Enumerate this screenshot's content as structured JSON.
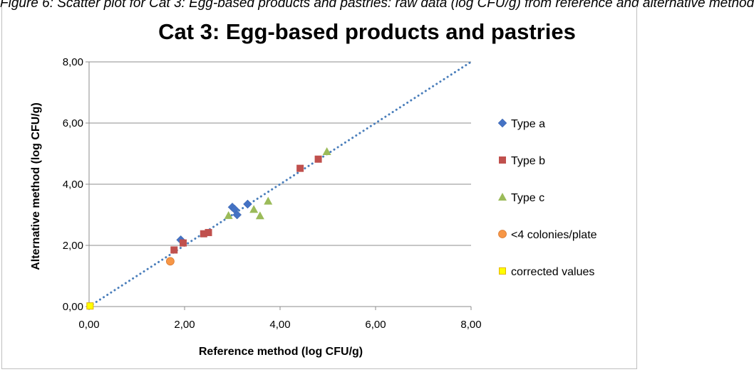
{
  "caption": "Figure 6: Scatter plot for Cat 3: Egg-based products and pastries: raw data (log CFU/g) from reference and alternative method",
  "chart_data": {
    "type": "scatter",
    "title": "Cat 3: Egg-based products and pastries",
    "xlabel": "Reference method (log  CFU/g)",
    "ylabel": "Alternative method (log  CFU/g)",
    "xlim": [
      0,
      8
    ],
    "ylim": [
      0,
      8
    ],
    "xticks": [
      "0,00",
      "2,00",
      "4,00",
      "6,00",
      "8,00"
    ],
    "yticks": [
      "0,00",
      "2,00",
      "4,00",
      "6,00",
      "8,00"
    ],
    "grid": "horizontal",
    "legend_position": "right",
    "reference_line": {
      "style": "dotted",
      "color": "#4a7ebb",
      "from": [
        0,
        0
      ],
      "to": [
        8,
        8
      ]
    },
    "series": [
      {
        "name": "Type a",
        "marker": "diamond",
        "color": "#4472c4",
        "x": [
          1.92,
          3.0,
          3.05,
          3.1,
          3.32
        ],
        "y": [
          2.18,
          3.25,
          3.18,
          3.0,
          3.35
        ]
      },
      {
        "name": "Type b",
        "marker": "square",
        "color": "#c0504d",
        "x": [
          1.78,
          1.97,
          2.4,
          2.5,
          4.42,
          4.8
        ],
        "y": [
          1.85,
          2.08,
          2.38,
          2.42,
          4.52,
          4.82
        ]
      },
      {
        "name": "Type c",
        "marker": "triangle",
        "color": "#9bbb59",
        "x": [
          2.92,
          3.45,
          3.58,
          3.75,
          4.98
        ],
        "y": [
          2.98,
          3.18,
          2.97,
          3.45,
          5.07
        ]
      },
      {
        "name": "<4 colonies/plate",
        "marker": "circle",
        "color": "#f79646",
        "x": [
          1.7
        ],
        "y": [
          1.48
        ]
      },
      {
        "name": "corrected values",
        "marker": "square-outline",
        "color": "#ffff00",
        "x": [
          0.02
        ],
        "y": [
          0.02
        ]
      }
    ]
  }
}
